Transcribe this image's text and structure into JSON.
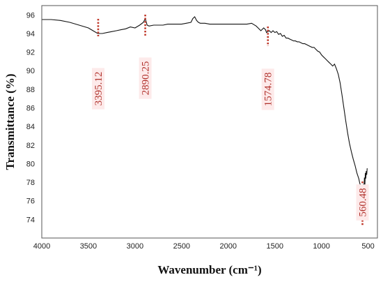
{
  "colors": {
    "line": "#111111",
    "annotation": "#c0392b",
    "annotation_text": "#b0302a",
    "label_bg": "#fdeaea",
    "frame": "#555555"
  },
  "chart_data": {
    "type": "line",
    "title": "",
    "xlabel": "Wavenumber (cm⁻¹)",
    "ylabel": "Transmittance (%)",
    "xlim": [
      4000,
      400
    ],
    "ylim": [
      72,
      97
    ],
    "x_reversed": true,
    "grid": false,
    "x_ticks": [
      4000,
      3500,
      3000,
      2500,
      2000,
      1500,
      1000,
      500
    ],
    "y_ticks": [
      74,
      76,
      78,
      80,
      82,
      84,
      86,
      88,
      90,
      92,
      94,
      96
    ],
    "series": [
      {
        "x": [
          4000,
          3900,
          3800,
          3700,
          3600,
          3500,
          3450,
          3400,
          3350,
          3300,
          3250,
          3200,
          3150,
          3100,
          3050,
          3000,
          2950,
          2910,
          2890,
          2870,
          2850,
          2800,
          2750,
          2700,
          2650,
          2600,
          2550,
          2500,
          2450,
          2400,
          2380,
          2360,
          2340,
          2320,
          2300,
          2250,
          2200,
          2150,
          2100,
          2050,
          2000,
          1950,
          1900,
          1850,
          1800,
          1750,
          1700,
          1680,
          1650,
          1620,
          1600,
          1590,
          1575,
          1560,
          1540,
          1520,
          1500,
          1480,
          1460,
          1440,
          1420,
          1400,
          1380,
          1360,
          1340,
          1320,
          1300,
          1280,
          1260,
          1240,
          1220,
          1200,
          1180,
          1160,
          1140,
          1120,
          1100,
          1080,
          1060,
          1040,
          1020,
          1000,
          980,
          960,
          940,
          920,
          900,
          880,
          860,
          840,
          820,
          800,
          780,
          760,
          740,
          720,
          700,
          680,
          660,
          640,
          620,
          600,
          590,
          580,
          570,
          565,
          560,
          555,
          550,
          545,
          540,
          535,
          530,
          525,
          520,
          515,
          510
        ],
        "y": [
          95.5,
          95.5,
          95.4,
          95.2,
          94.9,
          94.6,
          94.3,
          94.0,
          94.0,
          94.1,
          94.2,
          94.3,
          94.4,
          94.5,
          94.7,
          94.6,
          94.9,
          95.2,
          95.6,
          94.9,
          94.8,
          94.9,
          94.9,
          94.9,
          95.0,
          95.0,
          95.0,
          95.0,
          95.1,
          95.2,
          95.6,
          95.8,
          95.4,
          95.2,
          95.1,
          95.1,
          95.0,
          95.0,
          95.0,
          95.0,
          95.0,
          95.0,
          95.0,
          95.0,
          95.0,
          95.1,
          94.8,
          94.6,
          94.3,
          94.6,
          94.4,
          94.1,
          94.2,
          94.3,
          94.1,
          94.3,
          94.1,
          94.2,
          93.9,
          94.0,
          93.7,
          93.8,
          93.5,
          93.5,
          93.4,
          93.3,
          93.2,
          93.2,
          93.1,
          93.1,
          93.0,
          92.9,
          92.9,
          92.8,
          92.7,
          92.6,
          92.5,
          92.5,
          92.3,
          92.1,
          92.0,
          91.7,
          91.5,
          91.3,
          91.1,
          90.9,
          90.7,
          90.5,
          90.7,
          90.2,
          89.6,
          88.7,
          87.4,
          86.0,
          84.6,
          83.3,
          82.2,
          81.3,
          80.5,
          79.8,
          79.0,
          78.4,
          77.9,
          77.6,
          77.6,
          77.4,
          76.3,
          76.8,
          77.8,
          76.9,
          78.5,
          77.5,
          79.0,
          78.4,
          79.2,
          78.8,
          79.5
        ]
      }
    ],
    "annotations": [
      {
        "x": 3395.12,
        "label": "3395.12"
      },
      {
        "x": 2890.25,
        "label": "2890.25"
      },
      {
        "x": 1574.78,
        "label": "1574.78"
      },
      {
        "x": 560.48,
        "label": "560.48"
      }
    ]
  }
}
